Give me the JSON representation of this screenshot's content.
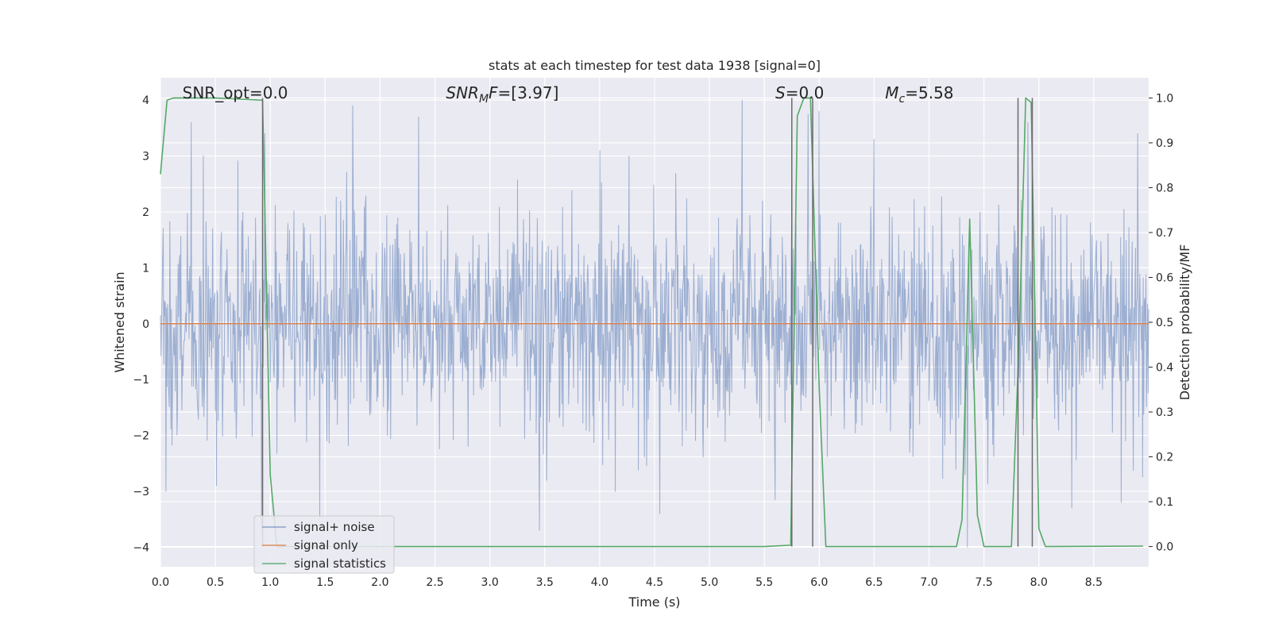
{
  "chart_data": {
    "type": "line",
    "title": "stats at each timestep for test data 1938 [signal=0]",
    "xlabel": "Time (s)",
    "ylabel": "Whitened strain",
    "ylabel_right": "Detection probability/MF",
    "xlim": [
      0.0,
      9.0
    ],
    "ylim": [
      -4.35,
      4.4
    ],
    "ylim_right": [
      -0.045,
      1.045
    ],
    "x_ticks": [
      0.0,
      0.5,
      1.0,
      1.5,
      2.0,
      2.5,
      3.0,
      3.5,
      4.0,
      4.5,
      5.0,
      5.5,
      6.0,
      6.5,
      7.0,
      7.5,
      8.0,
      8.5
    ],
    "x_tick_labels": [
      "0.0",
      "0.5",
      "1.0",
      "1.5",
      "2.0",
      "2.5",
      "3.0",
      "3.5",
      "4.0",
      "4.5",
      "5.0",
      "5.5",
      "6.0",
      "6.5",
      "7.0",
      "7.5",
      "8.0",
      "8.5"
    ],
    "y_ticks": [
      4,
      3,
      2,
      1,
      0,
      -1,
      -2,
      -3,
      -4
    ],
    "y_tick_labels": [
      "4",
      "3",
      "2",
      "1",
      "0",
      "−1",
      "−2",
      "−3",
      "−4"
    ],
    "y_ticks_right": [
      1.0,
      0.9,
      0.8,
      0.7,
      0.6,
      0.5,
      0.4,
      0.3,
      0.2,
      0.1,
      0.0
    ],
    "y_tick_labels_right": [
      "1.0",
      "0.9",
      "0.8",
      "0.7",
      "0.6",
      "0.5",
      "0.4",
      "0.3",
      "0.2",
      "0.1",
      "0.0"
    ],
    "grid": true,
    "legend_position": "lower-left",
    "annotations": [
      {
        "prefix": "SNR_opt",
        "sub": "",
        "suffix": "=0.0",
        "italic": false,
        "x": 0.2,
        "y": 4.13
      },
      {
        "prefix": "SNR",
        "sub": "M",
        "suffix": "F=[3.97]",
        "italic": true,
        "x": 2.6,
        "y": 4.13
      },
      {
        "prefix": "S",
        "sub": "",
        "suffix": "=0.0",
        "italic": true,
        "x": 5.6,
        "y": 4.13
      },
      {
        "prefix": "M",
        "sub": "c",
        "suffix": "=5.58",
        "italic": true,
        "x": 6.6,
        "y": 4.13
      }
    ],
    "series": [
      {
        "name": "signal+ noise",
        "color": "#4c72b0",
        "axis": "left",
        "kind": "noise",
        "t_start": 0.0,
        "t_end": 9.0,
        "samples": 1800,
        "envelope_sigma": 1.0,
        "positive_peaks": [
          {
            "x": 0.28,
            "y": 3.6
          },
          {
            "x": 0.92,
            "y": 3.25
          },
          {
            "x": 0.95,
            "y": 3.4
          },
          {
            "x": 1.75,
            "y": 3.9
          },
          {
            "x": 2.35,
            "y": 3.7
          },
          {
            "x": 4.0,
            "y": 3.1
          },
          {
            "x": 5.3,
            "y": 4.0
          },
          {
            "x": 5.9,
            "y": 3.75
          },
          {
            "x": 6.0,
            "y": 3.8
          },
          {
            "x": 6.5,
            "y": 3.3
          },
          {
            "x": 7.35,
            "y": 3.9
          },
          {
            "x": 7.9,
            "y": 3.6
          },
          {
            "x": 8.9,
            "y": 3.4
          }
        ],
        "negative_peaks": [
          {
            "x": 0.05,
            "y": -3.0
          },
          {
            "x": 0.92,
            "y": -3.7
          },
          {
            "x": 1.45,
            "y": -3.5
          },
          {
            "x": 3.45,
            "y": -3.7
          },
          {
            "x": 4.55,
            "y": -3.4
          },
          {
            "x": 5.6,
            "y": -3.15
          },
          {
            "x": 7.35,
            "y": -4.0
          },
          {
            "x": 8.3,
            "y": -3.3
          },
          {
            "x": 8.75,
            "y": -3.2
          }
        ]
      },
      {
        "name": "signal only",
        "color": "#dd8452",
        "axis": "left",
        "x": [
          0.0,
          9.0
        ],
        "y": [
          0.0,
          0.0
        ]
      },
      {
        "name": "signal statistics",
        "color": "#55a868",
        "axis": "right",
        "x": [
          0.0,
          0.06,
          0.12,
          0.5,
          0.93,
          1.0,
          1.06,
          5.5,
          5.74,
          5.8,
          5.86,
          5.92,
          6.0,
          6.06,
          7.25,
          7.3,
          7.37,
          7.44,
          7.5,
          7.75,
          7.82,
          7.88,
          7.93,
          8.0,
          8.06,
          8.95
        ],
        "y": [
          0.83,
          0.995,
          1.0,
          1.0,
          0.995,
          0.16,
          0.0,
          0.0,
          0.003,
          0.96,
          1.0,
          1.0,
          0.35,
          0.0,
          0.0,
          0.06,
          0.73,
          0.07,
          0.0,
          0.0,
          0.46,
          1.0,
          0.99,
          0.04,
          0.0,
          0.001
        ]
      }
    ],
    "vertical_lines": [
      0.93,
      5.75,
      5.94,
      7.81,
      7.94
    ],
    "vertical_line_color": "#6b6b6b",
    "vertical_line_range_right": [
      0.0,
      1.0
    ]
  }
}
